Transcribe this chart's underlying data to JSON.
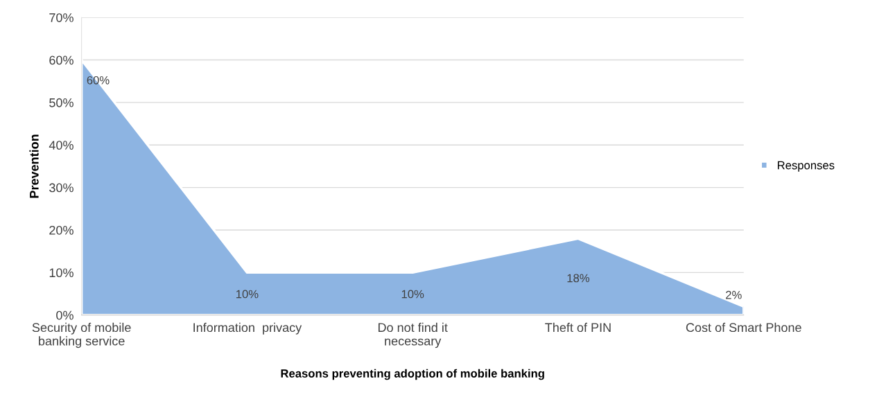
{
  "chart_data": {
    "type": "area",
    "xlabel": "Reasons preventing adoption of mobile banking",
    "ylabel": "Prevention",
    "categories": [
      "Security of mobile\nbanking service",
      "Information  privacy",
      "Do not find it\nnecessary",
      "Theft of PIN",
      "Cost of Smart Phone"
    ],
    "series": [
      {
        "name": "Responses",
        "color": "#8db4e2",
        "values": [
          60,
          10,
          10,
          18,
          2
        ],
        "value_labels": [
          "60%",
          "10%",
          "10%",
          "18%",
          "2%"
        ]
      }
    ],
    "ylim": [
      0,
      70
    ],
    "yticks": [
      {
        "value": 0,
        "label": "0%"
      },
      {
        "value": 10,
        "label": "10%"
      },
      {
        "value": 20,
        "label": "20%"
      },
      {
        "value": 30,
        "label": "30%"
      },
      {
        "value": 40,
        "label": "40%"
      },
      {
        "value": 50,
        "label": "50%"
      },
      {
        "value": 60,
        "label": "60%"
      },
      {
        "value": 70,
        "label": "70%"
      }
    ],
    "grid": "y",
    "legend": "right"
  }
}
